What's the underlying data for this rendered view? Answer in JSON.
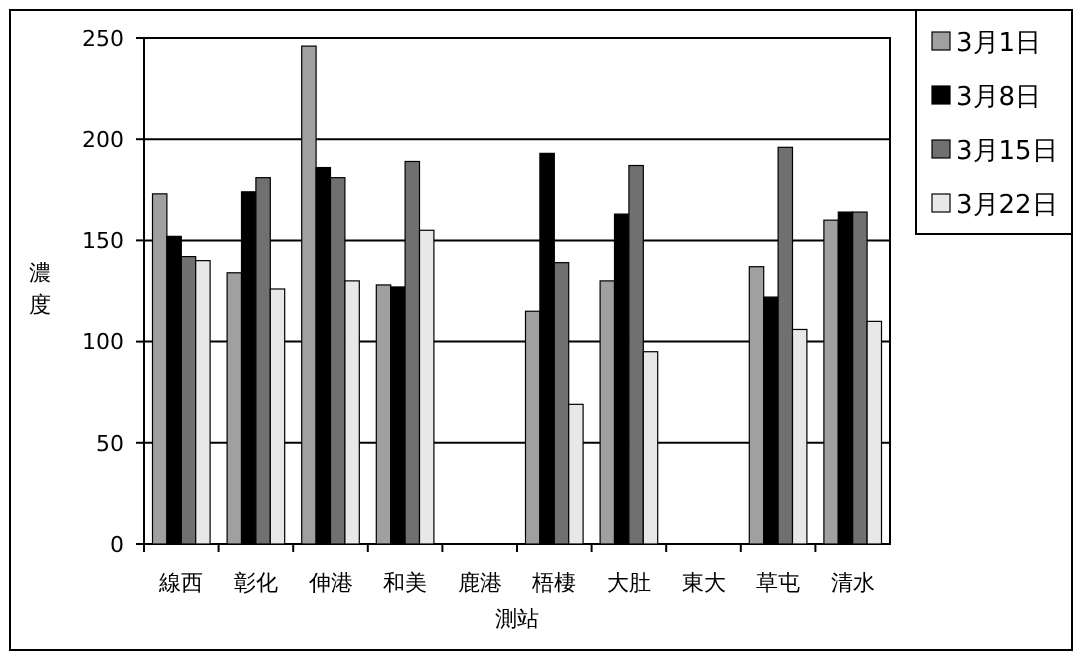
{
  "chart_data": {
    "type": "bar",
    "xlabel": "測站",
    "ylabel": "濃度",
    "categories": [
      "線西",
      "彰化",
      "伸港",
      "和美",
      "鹿港",
      "梧棲",
      "大肚",
      "東大",
      "草屯",
      "清水"
    ],
    "series": [
      {
        "name": "3月1日",
        "color": "#a0a0a0",
        "values": [
          173,
          134,
          246,
          128,
          null,
          115,
          130,
          null,
          137,
          160
        ]
      },
      {
        "name": "3月8日",
        "color": "#000000",
        "values": [
          152,
          174,
          186,
          127,
          null,
          193,
          163,
          null,
          122,
          164
        ]
      },
      {
        "name": "3月15日",
        "color": "#707070",
        "values": [
          142,
          181,
          181,
          189,
          null,
          139,
          187,
          null,
          196,
          164
        ]
      },
      {
        "name": "3月22日",
        "color": "#e8e8e8",
        "values": [
          140,
          126,
          130,
          155,
          null,
          69,
          95,
          null,
          106,
          110
        ]
      }
    ],
    "ylim": [
      0,
      250
    ],
    "yticks": [
      0,
      50,
      100,
      150,
      200,
      250
    ],
    "grid": "y",
    "legend": "top right"
  }
}
